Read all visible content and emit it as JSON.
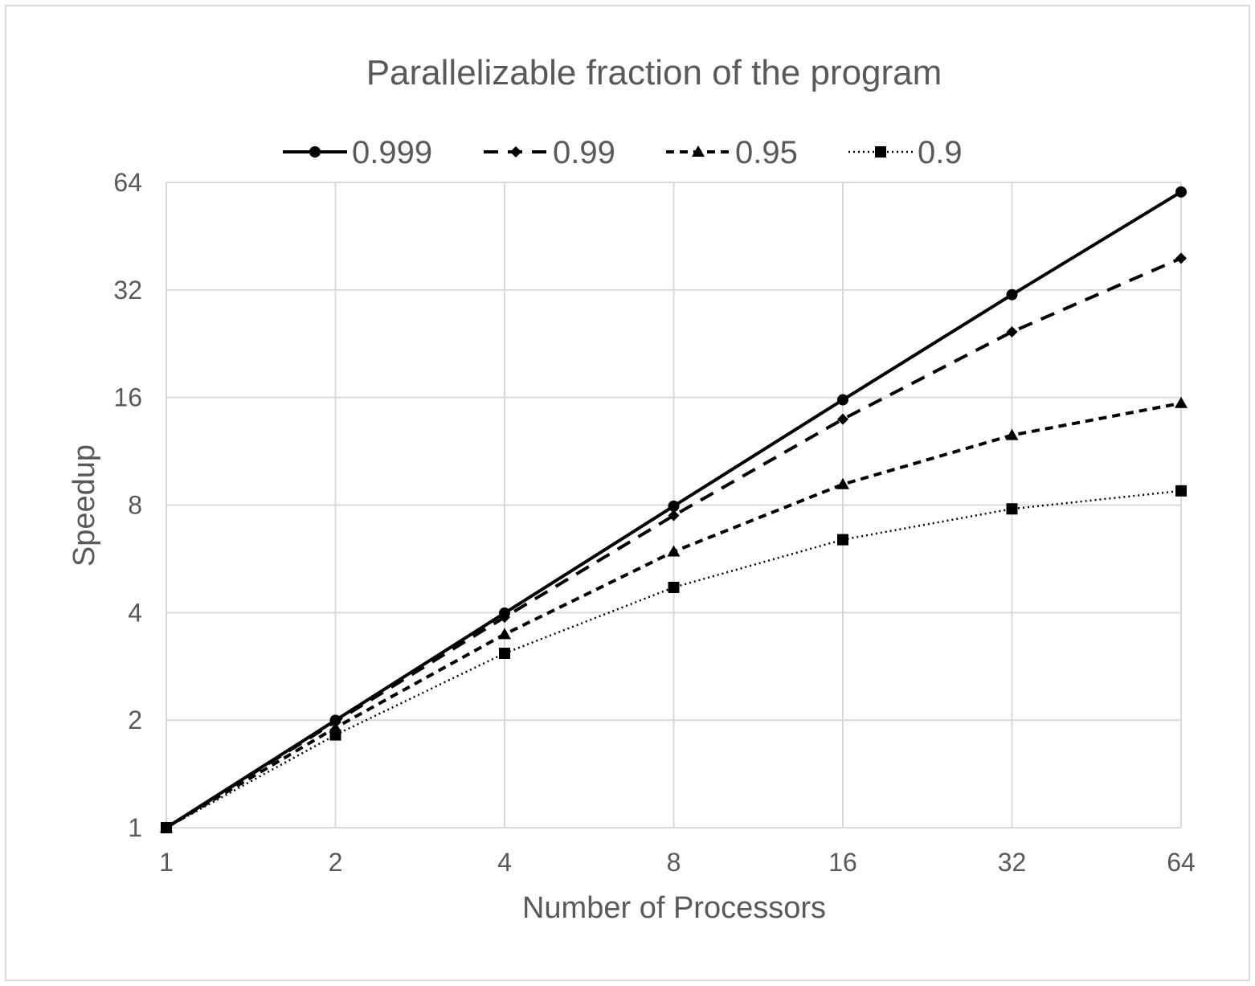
{
  "chart_data": {
    "type": "line",
    "title": "Parallelizable fraction of the program",
    "xlabel": "Number of Processors",
    "ylabel": "Speedup",
    "x_scale": "log2",
    "y_scale": "log2",
    "xlim": [
      1,
      64
    ],
    "ylim": [
      1,
      64
    ],
    "x": [
      1,
      2,
      4,
      8,
      16,
      32,
      64
    ],
    "x_tick_labels": [
      "1",
      "2",
      "4",
      "8",
      "16",
      "32",
      "64"
    ],
    "y_tick_labels": [
      "1",
      "2",
      "4",
      "8",
      "16",
      "32",
      "64"
    ],
    "grid": true,
    "legend_position": "top",
    "series": [
      {
        "name": "0.999",
        "marker": "circle",
        "line_style": "solid",
        "values": [
          1,
          1.998,
          3.988,
          7.944,
          15.764,
          31.039,
          60.2
        ]
      },
      {
        "name": "0.99",
        "marker": "diamond",
        "line_style": "dashed",
        "values": [
          1,
          1.98,
          3.883,
          7.477,
          13.913,
          24.427,
          39.264
        ]
      },
      {
        "name": "0.95",
        "marker": "triangle",
        "line_style": "short-dashed",
        "values": [
          1,
          1.905,
          3.478,
          5.926,
          9.143,
          12.549,
          15.422
        ]
      },
      {
        "name": "0.9",
        "marker": "square",
        "line_style": "dotted",
        "values": [
          1,
          1.818,
          3.077,
          4.706,
          6.4,
          7.805,
          8.767
        ]
      }
    ],
    "colors": {
      "series": "#000000",
      "grid": "#d9d9d9",
      "text": "#595959"
    }
  }
}
